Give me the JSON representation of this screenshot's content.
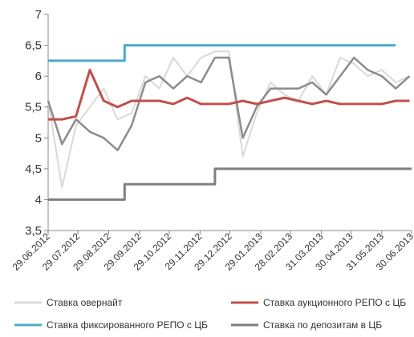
{
  "chart_data": {
    "type": "line",
    "xlim": [
      "2012-06-29",
      "2013-06-30"
    ],
    "xticks": [
      {
        "value": "2012-06-29",
        "label": "29.06.2012"
      },
      {
        "value": "2012-07-29",
        "label": "29.07.2012"
      },
      {
        "value": "2012-08-29",
        "label": "29.08.2012"
      },
      {
        "value": "2012-09-29",
        "label": "29.09.2012"
      },
      {
        "value": "2012-10-29",
        "label": "29.10.2012"
      },
      {
        "value": "2012-11-29",
        "label": "29.11.2012"
      },
      {
        "value": "2012-12-29",
        "label": "29.12.2012"
      },
      {
        "value": "2013-01-29",
        "label": "29.01.2013"
      },
      {
        "value": "2013-02-28",
        "label": "28.02.2013"
      },
      {
        "value": "2013-03-31",
        "label": "31.03.2013"
      },
      {
        "value": "2013-04-30",
        "label": "30.04.2013"
      },
      {
        "value": "2013-05-31",
        "label": "31.05.2013"
      },
      {
        "value": "2013-06-30",
        "label": "30.06.2013"
      }
    ],
    "ylim": [
      3.5,
      7
    ],
    "yticks": [
      {
        "value": 3.5,
        "label": "3,5"
      },
      4,
      {
        "value": 4.5,
        "label": "4,5"
      },
      5,
      {
        "value": 5.5,
        "label": "5,5"
      },
      6,
      {
        "value": 6.5,
        "label": "6,5"
      },
      7
    ],
    "series": [
      {
        "name": "Ставка овернайт",
        "color": "#d9d9d9",
        "width": 2,
        "x": [
          "2012-06-29",
          "2012-07-13",
          "2012-07-27",
          "2012-08-10",
          "2012-08-24",
          "2012-09-07",
          "2012-09-21",
          "2012-10-05",
          "2012-10-19",
          "2012-11-02",
          "2012-11-16",
          "2012-11-30",
          "2012-12-14",
          "2012-12-28",
          "2013-01-11",
          "2013-01-25",
          "2013-02-08",
          "2013-02-22",
          "2013-03-08",
          "2013-03-22",
          "2013-04-05",
          "2013-04-19",
          "2013-05-03",
          "2013-05-17",
          "2013-05-31",
          "2013-06-14",
          "2013-06-28"
        ],
        "values": [
          5.6,
          4.2,
          5.2,
          5.5,
          5.8,
          5.3,
          5.4,
          6.0,
          5.8,
          6.3,
          6.0,
          6.3,
          6.4,
          6.4,
          4.7,
          5.4,
          5.9,
          5.7,
          5.6,
          6.0,
          5.7,
          6.3,
          6.2,
          6.0,
          6.1,
          5.9,
          6.0
        ]
      },
      {
        "color": "#8c8c8c",
        "width": 2.5,
        "x": [
          "2012-06-29",
          "2012-07-13",
          "2012-07-27",
          "2012-08-10",
          "2012-08-24",
          "2012-09-07",
          "2012-09-21",
          "2012-10-05",
          "2012-10-19",
          "2012-11-02",
          "2012-11-16",
          "2012-11-30",
          "2012-12-14",
          "2012-12-28",
          "2013-01-11",
          "2013-01-25",
          "2013-02-08",
          "2013-02-22",
          "2013-03-08",
          "2013-03-22",
          "2013-04-05",
          "2013-04-19",
          "2013-05-03",
          "2013-05-17",
          "2013-05-31",
          "2013-06-14",
          "2013-06-28"
        ],
        "values": [
          5.6,
          4.9,
          5.3,
          5.1,
          5.0,
          4.8,
          5.2,
          5.9,
          6.0,
          5.8,
          6.0,
          5.9,
          6.3,
          6.3,
          5.0,
          5.5,
          5.8,
          5.8,
          5.8,
          5.9,
          5.7,
          6.0,
          6.3,
          6.1,
          6.0,
          5.8,
          6.0
        ]
      },
      {
        "name": "Ставка аукционного РЕПО с ЦБ",
        "color": "#c0504d",
        "width": 3,
        "x": [
          "2012-06-29",
          "2012-07-13",
          "2012-07-27",
          "2012-08-10",
          "2012-08-24",
          "2012-09-07",
          "2012-09-21",
          "2012-10-05",
          "2012-10-19",
          "2012-11-02",
          "2012-11-16",
          "2012-11-30",
          "2012-12-14",
          "2012-12-28",
          "2013-01-11",
          "2013-01-25",
          "2013-02-08",
          "2013-02-22",
          "2013-03-08",
          "2013-03-22",
          "2013-04-05",
          "2013-04-19",
          "2013-05-03",
          "2013-05-17",
          "2013-05-31",
          "2013-06-14",
          "2013-06-28"
        ],
        "values": [
          5.3,
          5.3,
          5.35,
          6.1,
          5.6,
          5.5,
          5.6,
          5.6,
          5.6,
          5.55,
          5.65,
          5.55,
          5.55,
          5.55,
          5.6,
          5.55,
          5.6,
          5.65,
          5.6,
          5.55,
          5.6,
          5.55,
          5.55,
          5.55,
          5.55,
          5.6,
          5.6
        ]
      },
      {
        "name": "Ставка фиксированного РЕПО с ЦБ",
        "color": "#4bacc6",
        "width": 3,
        "x": [
          "2012-06-29",
          "2012-09-14",
          "2012-09-14",
          "2013-06-14"
        ],
        "values": [
          6.25,
          6.25,
          6.5,
          6.5
        ]
      },
      {
        "name": "Ставка по депозитам в ЦБ",
        "color": "#7f7f7f",
        "width": 3,
        "x": [
          "2012-06-29",
          "2012-09-14",
          "2012-09-14",
          "2012-12-14",
          "2012-12-14",
          "2013-06-30"
        ],
        "values": [
          4,
          4,
          4.25,
          4.25,
          4.5,
          4.5
        ]
      }
    ]
  }
}
